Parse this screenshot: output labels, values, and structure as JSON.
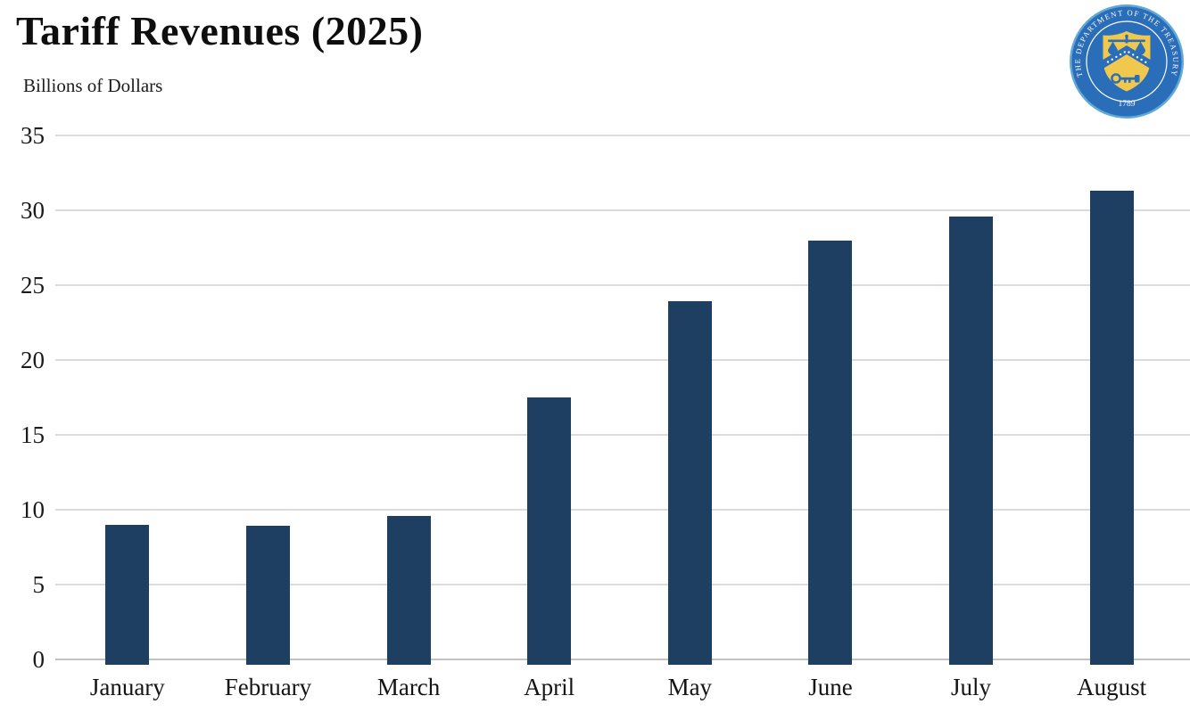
{
  "header": {
    "title": "Tariff Revenues (2025)",
    "subtitle": "Billions of Dollars"
  },
  "seal": {
    "label": "U.S. Department of the Treasury seal",
    "rim_text": "THE DEPARTMENT OF THE TREASURY",
    "year": "1789",
    "colors": {
      "edge_light_blue": "#5fa8d8",
      "ring_blue": "#2a6db8",
      "shield_gold": "#f0c84d",
      "emblem_blue": "#2a6db8",
      "text_white": "#ffffff"
    }
  },
  "chart_data": {
    "type": "bar",
    "title": "Tariff Revenues (2025)",
    "ylabel": "Billions of Dollars",
    "xlabel": "",
    "categories": [
      "January",
      "February",
      "March",
      "April",
      "May",
      "June",
      "July",
      "August"
    ],
    "values": [
      9.0,
      8.9,
      9.6,
      17.5,
      23.9,
      28.0,
      29.6,
      31.3
    ],
    "ylim": [
      0,
      35
    ],
    "yticks": [
      0,
      5,
      10,
      15,
      20,
      25,
      30,
      35
    ],
    "grid": true,
    "legend": false,
    "bar_color": "#1e3e62",
    "gridline_color": "#dcdcdc",
    "baseline_color": "#c2c2c2",
    "text_color": "#1b1b1b"
  }
}
